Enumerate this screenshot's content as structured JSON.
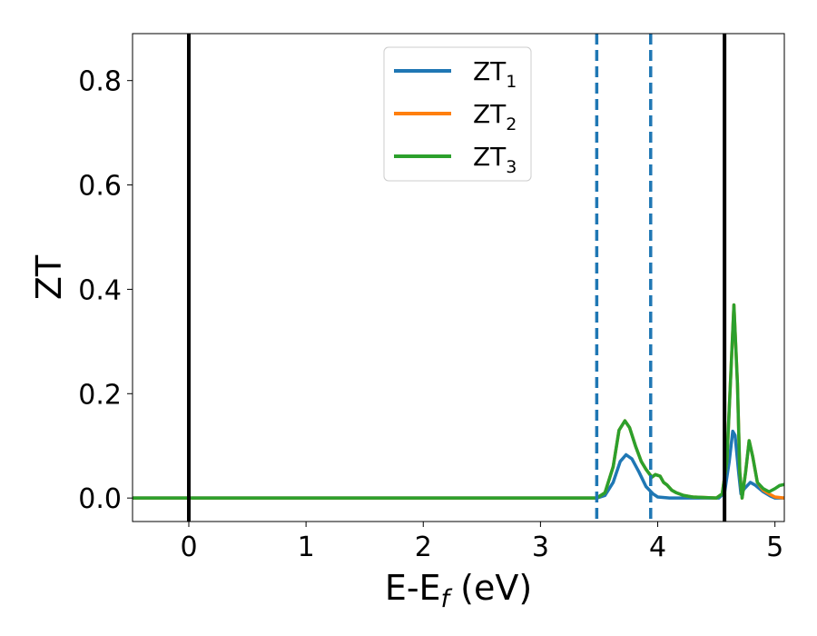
{
  "chart_data": {
    "type": "line",
    "xlabel": {
      "main": "E-E",
      "sub": "f",
      "tail": " (eV)"
    },
    "ylabel": "ZT",
    "xlim": [
      -0.48,
      5.08
    ],
    "ylim": [
      -0.045,
      0.89
    ],
    "x_ticks": [
      0,
      1,
      2,
      3,
      4,
      5
    ],
    "x_tick_labels": [
      "0",
      "1",
      "2",
      "3",
      "4",
      "5"
    ],
    "y_ticks": [
      0.0,
      0.2,
      0.4,
      0.6,
      0.8
    ],
    "y_tick_labels": [
      "0.0",
      "0.2",
      "0.4",
      "0.6",
      "0.8"
    ],
    "grid": false,
    "legend_position": "top-center",
    "vlines": [
      {
        "x": 0.0,
        "style": "solid",
        "color": "#000000"
      },
      {
        "x": 4.57,
        "style": "solid",
        "color": "#000000"
      },
      {
        "x": 3.48,
        "style": "dashed",
        "color": "#1f77b4"
      },
      {
        "x": 3.94,
        "style": "dashed",
        "color": "#1f77b4"
      }
    ],
    "series": [
      {
        "name": "ZT",
        "sub": "1",
        "color": "#1f77b4",
        "points": [
          [
            -0.48,
            0
          ],
          [
            3.48,
            0
          ],
          [
            3.55,
            0.005
          ],
          [
            3.62,
            0.03
          ],
          [
            3.68,
            0.07
          ],
          [
            3.73,
            0.083
          ],
          [
            3.78,
            0.075
          ],
          [
            3.84,
            0.05
          ],
          [
            3.9,
            0.022
          ],
          [
            3.96,
            0.008
          ],
          [
            4.0,
            0.002
          ],
          [
            4.1,
            0.0
          ],
          [
            4.52,
            0.0
          ],
          [
            4.57,
            0.01
          ],
          [
            4.61,
            0.07
          ],
          [
            4.64,
            0.128
          ],
          [
            4.66,
            0.12
          ],
          [
            4.69,
            0.05
          ],
          [
            4.71,
            0.008
          ],
          [
            4.74,
            0.018
          ],
          [
            4.79,
            0.03
          ],
          [
            4.83,
            0.025
          ],
          [
            4.9,
            0.012
          ],
          [
            4.96,
            0.004
          ],
          [
            5.0,
            0.0
          ],
          [
            5.08,
            0.0
          ]
        ]
      },
      {
        "name": "ZT",
        "sub": "2",
        "color": "#ff7f0e",
        "points": [
          [
            -0.48,
            0
          ],
          [
            3.48,
            0
          ],
          [
            3.55,
            0.01
          ],
          [
            3.62,
            0.06
          ],
          [
            3.67,
            0.13
          ],
          [
            3.72,
            0.148
          ],
          [
            3.76,
            0.135
          ],
          [
            3.81,
            0.1
          ],
          [
            3.86,
            0.07
          ],
          [
            3.9,
            0.055
          ],
          [
            3.95,
            0.04
          ],
          [
            3.98,
            0.045
          ],
          [
            4.02,
            0.042
          ],
          [
            4.05,
            0.03
          ],
          [
            4.08,
            0.025
          ],
          [
            4.12,
            0.015
          ],
          [
            4.16,
            0.01
          ],
          [
            4.22,
            0.005
          ],
          [
            4.3,
            0.002
          ],
          [
            4.5,
            0.0
          ],
          [
            4.55,
            0.008
          ],
          [
            4.59,
            0.07
          ],
          [
            4.62,
            0.22
          ],
          [
            4.65,
            0.37
          ],
          [
            4.68,
            0.22
          ],
          [
            4.7,
            0.05
          ],
          [
            4.72,
            0.0
          ],
          [
            4.75,
            0.05
          ],
          [
            4.78,
            0.11
          ],
          [
            4.81,
            0.08
          ],
          [
            4.85,
            0.03
          ],
          [
            4.9,
            0.015
          ],
          [
            4.95,
            0.008
          ],
          [
            5.0,
            0.002
          ],
          [
            5.08,
            0.0
          ]
        ]
      },
      {
        "name": "ZT",
        "sub": "3",
        "color": "#2ca02c",
        "points": [
          [
            -0.48,
            0
          ],
          [
            3.48,
            0
          ],
          [
            3.55,
            0.01
          ],
          [
            3.62,
            0.06
          ],
          [
            3.67,
            0.13
          ],
          [
            3.72,
            0.148
          ],
          [
            3.76,
            0.135
          ],
          [
            3.81,
            0.1
          ],
          [
            3.86,
            0.07
          ],
          [
            3.9,
            0.055
          ],
          [
            3.95,
            0.04
          ],
          [
            3.98,
            0.045
          ],
          [
            4.02,
            0.042
          ],
          [
            4.05,
            0.03
          ],
          [
            4.08,
            0.025
          ],
          [
            4.12,
            0.015
          ],
          [
            4.16,
            0.01
          ],
          [
            4.22,
            0.005
          ],
          [
            4.3,
            0.002
          ],
          [
            4.5,
            0.0
          ],
          [
            4.55,
            0.008
          ],
          [
            4.59,
            0.07
          ],
          [
            4.62,
            0.22
          ],
          [
            4.65,
            0.37
          ],
          [
            4.68,
            0.22
          ],
          [
            4.7,
            0.05
          ],
          [
            4.72,
            0.0
          ],
          [
            4.75,
            0.05
          ],
          [
            4.78,
            0.11
          ],
          [
            4.81,
            0.08
          ],
          [
            4.85,
            0.03
          ],
          [
            4.9,
            0.018
          ],
          [
            4.95,
            0.012
          ],
          [
            5.0,
            0.018
          ],
          [
            5.04,
            0.024
          ],
          [
            5.08,
            0.026
          ]
        ]
      }
    ]
  }
}
